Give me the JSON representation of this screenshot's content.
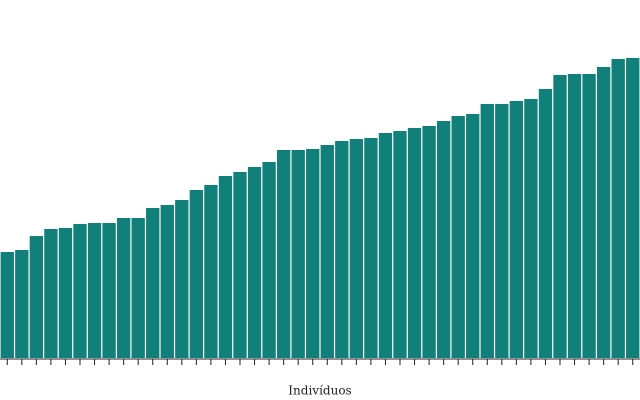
{
  "chart_data": {
    "type": "bar",
    "x_label": "Indivíduos",
    "categories": [
      null,
      null,
      null,
      null,
      null,
      null,
      null,
      null,
      null,
      null,
      null,
      null,
      null,
      null,
      null,
      null,
      null,
      null,
      null,
      null,
      null,
      null,
      null,
      null,
      null,
      null,
      null,
      null,
      null,
      null,
      null,
      null,
      null,
      null,
      null,
      null,
      null,
      null,
      null,
      null,
      null,
      null,
      null,
      null
    ],
    "values": [
      106,
      108,
      122,
      129,
      130,
      134,
      135,
      135,
      140,
      140,
      150,
      153,
      158,
      168,
      173,
      182,
      186,
      191,
      196,
      208,
      208,
      209,
      213,
      217,
      219,
      220,
      225,
      227,
      230,
      232,
      237,
      242,
      244,
      254,
      254,
      257,
      259,
      269,
      283,
      284,
      284,
      291,
      299,
      300
    ],
    "color": "#11807a",
    "ylim": [
      0,
      300
    ]
  }
}
